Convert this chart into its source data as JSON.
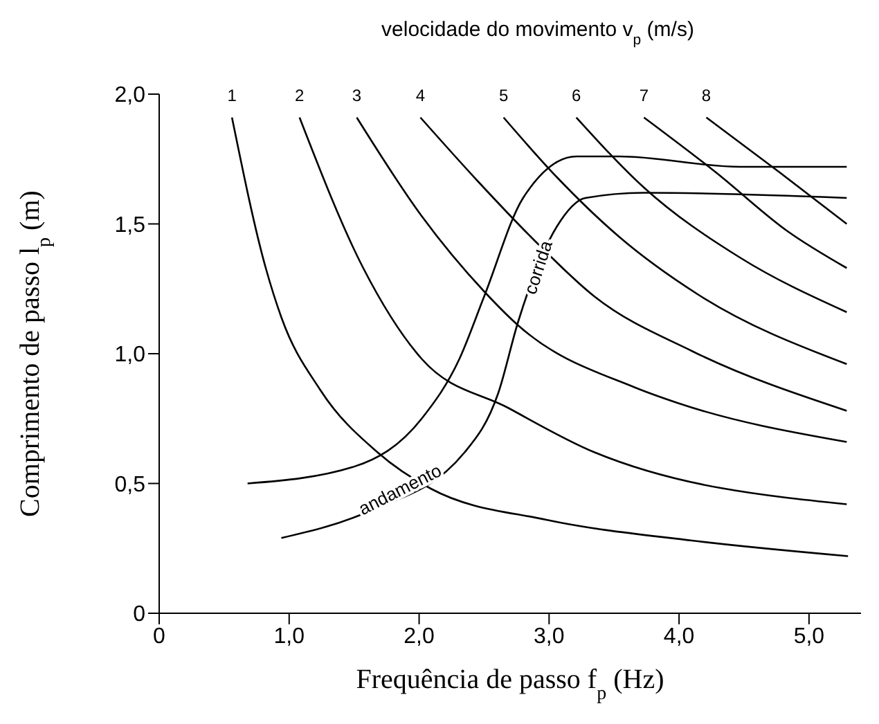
{
  "chart_data": {
    "type": "line",
    "title": "velocidade do movimento v$_{p}$ (m/s)",
    "xlabel": "Frequência de passo f$_{p}$ (Hz)",
    "ylabel": "Comprimento de passo l$_{p}$ (m)",
    "xlim": [
      0,
      5.4
    ],
    "xticks": [
      0,
      {
        "value": 1,
        "label": "1,0"
      },
      {
        "value": 2,
        "label": "2,0"
      },
      {
        "value": 3,
        "label": "3,0"
      },
      {
        "value": 4,
        "label": "4,0"
      },
      {
        "value": 5,
        "label": "5,0"
      }
    ],
    "ylim": [
      0,
      2.0
    ],
    "yticks": [
      0,
      {
        "value": 0.5,
        "label": "0,5"
      },
      {
        "value": 1,
        "label": "1,0"
      },
      {
        "value": 1.5,
        "label": "1,5"
      },
      {
        "value": 2,
        "label": "2,0"
      }
    ],
    "marker": "none",
    "line_style": "solid",
    "series": [
      {
        "name": "1",
        "color": "#000000",
        "x": [
          0.56,
          0.82,
          0.94,
          1.24,
          1.68,
          2.09,
          2.98,
          4.1,
          5.3
        ],
        "values": [
          1.91,
          1.33,
          1.14,
          0.86,
          0.62,
          0.48,
          0.36,
          0.28,
          0.22
        ]
      },
      {
        "name": "2",
        "color": "#000000",
        "x": [
          1.08,
          1.57,
          2.02,
          2.69,
          3.35,
          5.29
        ],
        "values": [
          1.91,
          1.33,
          0.98,
          0.79,
          0.62,
          0.42
        ]
      },
      {
        "name": "3",
        "color": "#000000",
        "x": [
          1.52,
          2.02,
          2.5,
          2.76,
          3.66,
          3.99,
          5.29
        ],
        "values": [
          1.91,
          1.53,
          1.24,
          1.11,
          0.87,
          0.81,
          0.66
        ]
      },
      {
        "name": "4",
        "color": "#000000",
        "x": [
          2.01,
          2.46,
          2.88,
          3.35,
          4.1,
          5.29
        ],
        "values": [
          1.91,
          1.66,
          1.44,
          1.22,
          1.01,
          0.78
        ]
      },
      {
        "name": "5",
        "color": "#000000",
        "x": [
          2.65,
          3.06,
          3.54,
          4.14,
          5.29
        ],
        "values": [
          1.91,
          1.68,
          1.45,
          1.23,
          0.96
        ]
      },
      {
        "name": "6",
        "color": "#000000",
        "x": [
          3.21,
          3.73,
          4.47,
          5.29
        ],
        "values": [
          1.91,
          1.64,
          1.37,
          1.16
        ]
      },
      {
        "name": "7",
        "color": "#000000",
        "x": [
          3.73,
          4.28,
          4.84,
          5.29
        ],
        "values": [
          1.91,
          1.7,
          1.47,
          1.33
        ]
      },
      {
        "name": "8",
        "color": "#000000",
        "x": [
          4.21,
          4.77,
          5.29
        ],
        "values": [
          1.91,
          1.7,
          1.5
        ]
      },
      {
        "color": "#000000",
        "x": [
          0.68,
          1.5,
          2.02,
          2.31,
          2.5,
          2.8,
          3.21,
          3.54,
          4.47,
          5.29
        ],
        "values": [
          0.5,
          0.565,
          0.75,
          0.98,
          1.22,
          1.6,
          1.76,
          1.76,
          1.72,
          1.72
        ]
      },
      {
        "color": "#000000",
        "x": [
          0.94,
          1.6,
          2.35,
          2.61,
          2.76,
          3.06,
          3.28,
          3.73,
          5.29
        ],
        "values": [
          0.29,
          0.39,
          0.62,
          0.85,
          1.12,
          1.49,
          1.6,
          1.62,
          1.6
        ]
      }
    ],
    "annotations": [
      {
        "text": "andamento",
        "x": 1.86,
        "y": 0.47
      },
      {
        "text": "corrida",
        "x": 2.93,
        "y": 1.33
      }
    ]
  }
}
